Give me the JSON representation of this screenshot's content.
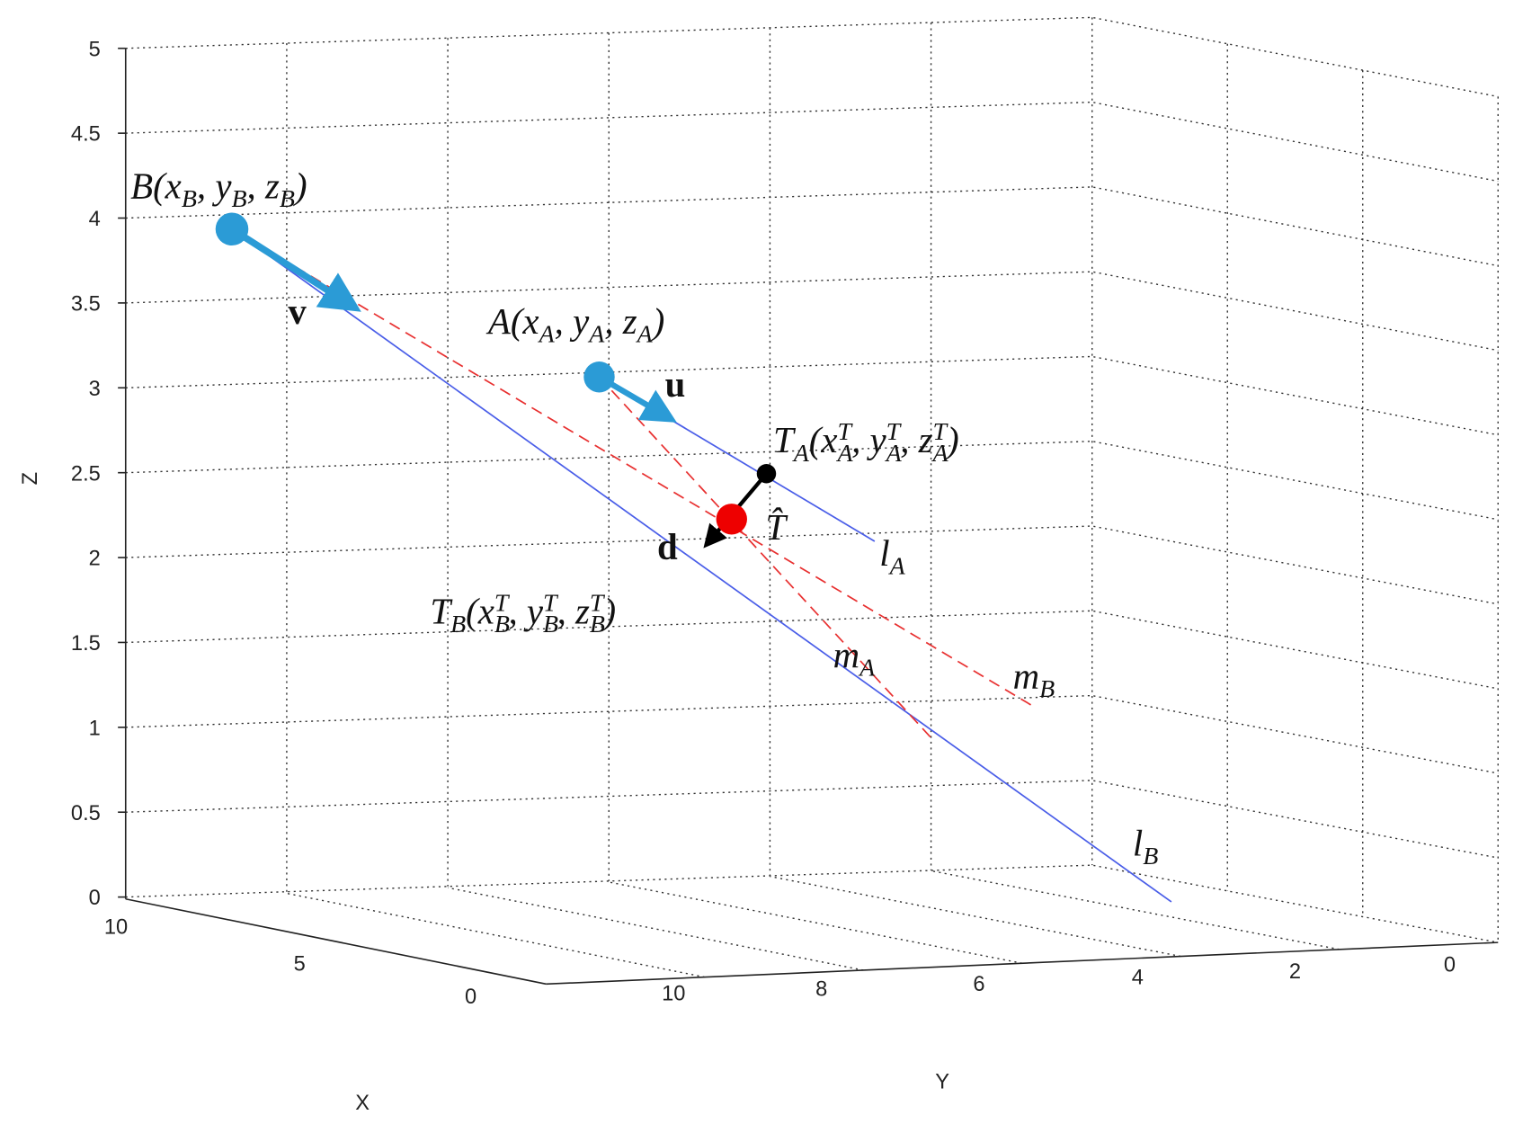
{
  "axes": {
    "z_label": "Z",
    "y_label": "Y",
    "x_label": "X",
    "z_ticks": [
      0,
      0.5,
      1,
      1.5,
      2,
      2.5,
      3,
      3.5,
      4,
      4.5,
      5
    ],
    "y_ticks": [
      10,
      8,
      6,
      4,
      2,
      0
    ],
    "x_ticks": [
      10,
      5,
      0
    ]
  },
  "labels": {
    "B": [
      {
        "text": "B(x"
      },
      {
        "text": "B",
        "script": "sub"
      },
      {
        "text": ", y"
      },
      {
        "text": "B",
        "script": "sub"
      },
      {
        "text": ", z"
      },
      {
        "text": "B",
        "script": "sub"
      },
      {
        "text": ")"
      }
    ],
    "v": [
      {
        "text": "v"
      }
    ],
    "A": [
      {
        "text": "A(x"
      },
      {
        "text": "A",
        "script": "sub"
      },
      {
        "text": ", y"
      },
      {
        "text": "A",
        "script": "sub"
      },
      {
        "text": ", z"
      },
      {
        "text": "A",
        "script": "sub"
      },
      {
        "text": ")"
      }
    ],
    "u": [
      {
        "text": "u"
      }
    ],
    "TA": [
      {
        "text": "T"
      },
      {
        "text": "A",
        "script": "sub"
      },
      {
        "text": "(x"
      },
      {
        "text": "A",
        "script": "sub"
      },
      {
        "text": "T",
        "script": "sup"
      },
      {
        "text": ", y"
      },
      {
        "text": "A",
        "script": "sub"
      },
      {
        "text": "T",
        "script": "sup"
      },
      {
        "text": ", z"
      },
      {
        "text": "A",
        "script": "sub"
      },
      {
        "text": "T",
        "script": "sup"
      },
      {
        "text": ")"
      }
    ],
    "That": [
      {
        "text": "T̂"
      }
    ],
    "lA": [
      {
        "text": "l"
      },
      {
        "text": "A",
        "script": "sub"
      }
    ],
    "d": [
      {
        "text": "d"
      }
    ],
    "TB": [
      {
        "text": "T"
      },
      {
        "text": "B",
        "script": "sub"
      },
      {
        "text": "(x"
      },
      {
        "text": "B",
        "script": "sub"
      },
      {
        "text": "T",
        "script": "sup"
      },
      {
        "text": ", y"
      },
      {
        "text": "B",
        "script": "sub"
      },
      {
        "text": "T",
        "script": "sup"
      },
      {
        "text": ", z"
      },
      {
        "text": "B",
        "script": "sub"
      },
      {
        "text": "T",
        "script": "sup"
      },
      {
        "text": ")"
      }
    ],
    "mA": [
      {
        "text": "m"
      },
      {
        "text": "A",
        "script": "sub"
      }
    ],
    "mB": [
      {
        "text": "m"
      },
      {
        "text": "B",
        "script": "sub"
      }
    ],
    "lB": [
      {
        "text": "l"
      },
      {
        "text": "B",
        "script": "sub"
      }
    ]
  }
}
